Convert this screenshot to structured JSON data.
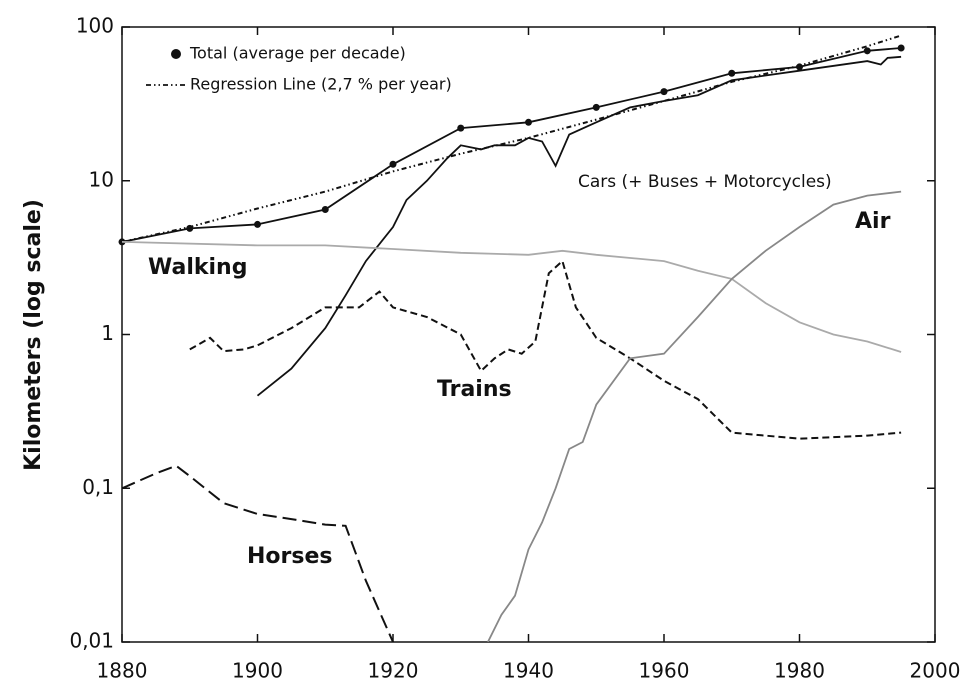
{
  "chart_data": {
    "type": "line",
    "y_label": "Kilometers (log scale)",
    "log_y": true,
    "xlim": [
      1880,
      2000
    ],
    "xticks": [
      1880,
      1900,
      1920,
      1940,
      1960,
      1980,
      2000
    ],
    "ylim": [
      0.01,
      100
    ],
    "yticks": [
      {
        "value": 0.01,
        "label": "0,01"
      },
      {
        "value": 0.1,
        "label": "0,1"
      },
      1,
      10,
      100
    ],
    "series": [
      {
        "name": "Total (average per decade)",
        "color": "#111111",
        "style": "solid",
        "marker": "circle",
        "x": [
          1880,
          1890,
          1900,
          1910,
          1920,
          1930,
          1940,
          1950,
          1960,
          1970,
          1980,
          1990,
          1995
        ],
        "values": [
          4,
          4.9,
          5.2,
          6.5,
          12.8,
          22,
          24,
          30,
          38,
          50,
          55,
          70,
          73
        ]
      },
      {
        "name": "Regression Line (2,7 % per year)",
        "color": "#111111",
        "style": "dash-dot",
        "x": [
          1880,
          1890,
          1900,
          1910,
          1920,
          1930,
          1940,
          1950,
          1960,
          1970,
          1980,
          1990,
          1995
        ],
        "values": [
          4,
          5,
          6.6,
          8.5,
          11.5,
          15,
          19,
          25,
          33,
          44,
          56,
          75,
          88
        ]
      },
      {
        "name": "Cars (+ Buses + Motorcycles)",
        "color": "#111111",
        "style": "solid",
        "x": [
          1900,
          1905,
          1910,
          1913,
          1916,
          1920,
          1922,
          1925,
          1928,
          1930,
          1933,
          1935,
          1938,
          1940,
          1942,
          1944,
          1946,
          1950,
          1955,
          1960,
          1965,
          1970,
          1980,
          1990,
          1992,
          1993,
          1995
        ],
        "values": [
          0.4,
          0.6,
          1.1,
          1.8,
          3,
          5,
          7.5,
          10,
          14,
          17,
          16,
          17,
          17,
          19,
          18,
          12.5,
          20,
          24,
          30,
          33,
          36,
          45,
          52,
          60,
          57,
          63,
          64
        ]
      },
      {
        "name": "Walking",
        "color": "#aaaaaa",
        "style": "solid",
        "x": [
          1880,
          1900,
          1910,
          1920,
          1930,
          1940,
          1945,
          1950,
          1960,
          1965,
          1970,
          1975,
          1980,
          1985,
          1990,
          1995
        ],
        "values": [
          4,
          3.8,
          3.8,
          3.6,
          3.4,
          3.3,
          3.5,
          3.3,
          3,
          2.6,
          2.3,
          1.6,
          1.2,
          1,
          0.9,
          0.77
        ]
      },
      {
        "name": "Trains",
        "color": "#111111",
        "style": "dashed",
        "x": [
          1890,
          1893,
          1895,
          1898,
          1900,
          1905,
          1910,
          1915,
          1918,
          1920,
          1925,
          1930,
          1933,
          1935,
          1937,
          1939,
          1941,
          1943,
          1945,
          1947,
          1950,
          1955,
          1960,
          1965,
          1970,
          1980,
          1990,
          1995
        ],
        "values": [
          0.8,
          0.95,
          0.78,
          0.8,
          0.85,
          1.1,
          1.5,
          1.5,
          1.9,
          1.5,
          1.3,
          1.0,
          0.58,
          0.7,
          0.8,
          0.75,
          0.9,
          2.5,
          3,
          1.5,
          0.95,
          0.7,
          0.5,
          0.38,
          0.23,
          0.21,
          0.22,
          0.23
        ]
      },
      {
        "name": "Horses",
        "color": "#111111",
        "style": "long-dash",
        "x": [
          1880,
          1885,
          1888,
          1890,
          1895,
          1900,
          1905,
          1910,
          1913,
          1916,
          1920
        ],
        "values": [
          0.1,
          0.125,
          0.14,
          0.12,
          0.08,
          0.068,
          0.063,
          0.058,
          0.057,
          0.025,
          0.01
        ]
      },
      {
        "name": "Air",
        "color": "#888888",
        "style": "solid",
        "x": [
          1934,
          1936,
          1938,
          1940,
          1942,
          1944,
          1946,
          1948,
          1950,
          1955,
          1960,
          1965,
          1970,
          1975,
          1980,
          1985,
          1990,
          1995
        ],
        "values": [
          0.01,
          0.015,
          0.02,
          0.04,
          0.06,
          0.1,
          0.18,
          0.2,
          0.35,
          0.7,
          0.75,
          1.3,
          2.3,
          3.5,
          5,
          7,
          8,
          8.5
        ]
      }
    ]
  }
}
